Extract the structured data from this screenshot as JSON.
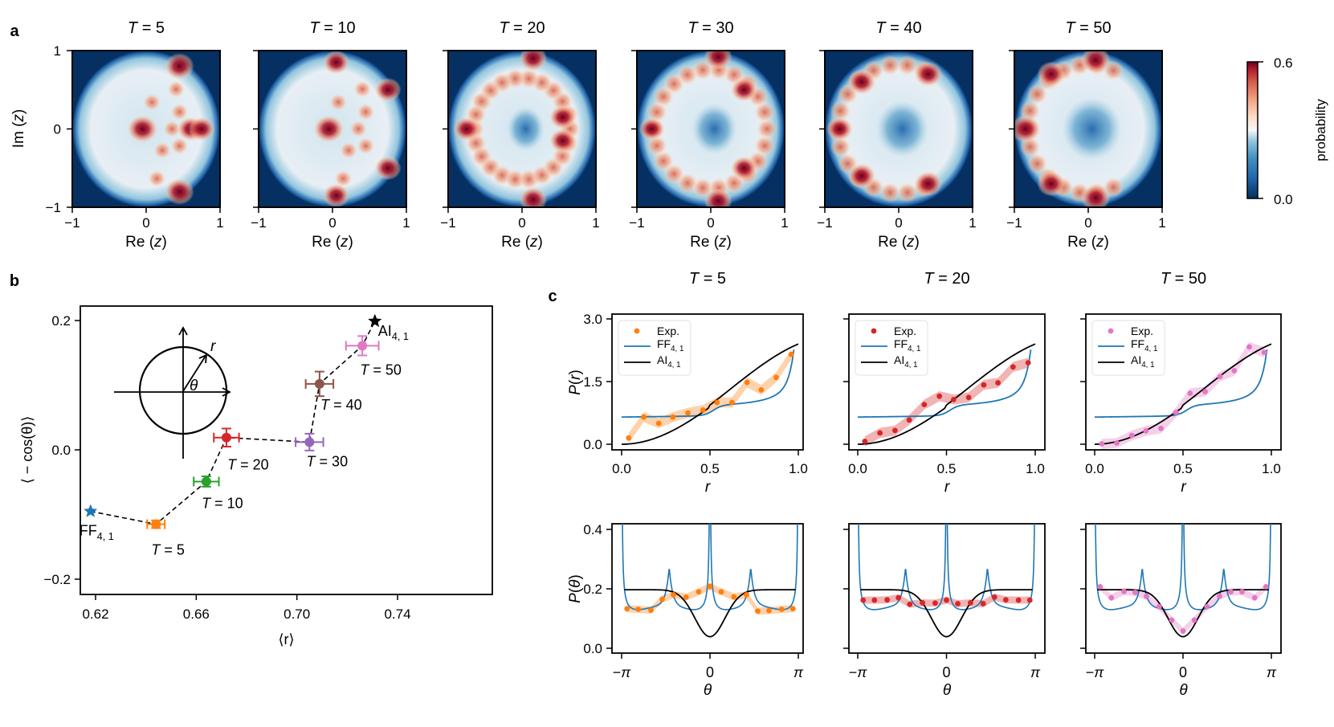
{
  "panels": {
    "a": {
      "letter": "a"
    },
    "b": {
      "letter": "b"
    },
    "c": {
      "letter": "c"
    }
  },
  "chart_data": [
    {
      "panel": "a",
      "type": "heatmap",
      "description": "Probability density of complex eigenvalue z in unit disk for increasing T",
      "titles": [
        "T = 5",
        "T = 10",
        "T = 20",
        "T = 30",
        "T = 40",
        "T = 50"
      ],
      "xlabel": "Re (z)",
      "ylabel": "Im (z)",
      "xticks": [
        "−1",
        "0",
        "1"
      ],
      "yticks": [
        "1",
        "0",
        "−1"
      ],
      "xlim": [
        -1,
        1
      ],
      "ylim": [
        -1,
        1
      ],
      "colorbar": {
        "label": "probability",
        "min": "0.0",
        "max": "0.6",
        "cmap": "RdBu_r"
      },
      "features": [
        {
          "T": 5,
          "hotspots": [
            [
              -0.05,
              0,
              0.6
            ],
            [
              0.45,
              0.8,
              0.55
            ],
            [
              0.45,
              -0.8,
              0.55
            ],
            [
              0.6,
              0,
              0.45
            ],
            [
              0.75,
              0,
              0.45
            ]
          ]
        },
        {
          "T": 10,
          "hotspots": [
            [
              -0.05,
              0,
              0.6
            ],
            [
              0.05,
              0.85,
              0.45
            ],
            [
              0.05,
              -0.85,
              0.45
            ],
            [
              0.75,
              0.5,
              0.45
            ],
            [
              0.75,
              -0.5,
              0.45
            ]
          ]
        },
        {
          "T": 20,
          "hotspots": [
            [
              0.15,
              0.9,
              0.5
            ],
            [
              0.15,
              -0.9,
              0.5
            ],
            [
              0.55,
              0.15,
              0.45
            ],
            [
              0.55,
              -0.15,
              0.45
            ],
            [
              -0.75,
              0,
              0.45
            ]
          ]
        },
        {
          "T": 30,
          "hotspots": [
            [
              0.1,
              0.92,
              0.5
            ],
            [
              0.1,
              -0.92,
              0.5
            ],
            [
              0.45,
              0.5,
              0.45
            ],
            [
              0.45,
              -0.5,
              0.45
            ],
            [
              -0.8,
              0,
              0.4
            ]
          ]
        },
        {
          "T": 40,
          "hotspots": [
            [
              -0.5,
              0.6,
              0.5
            ],
            [
              -0.5,
              -0.6,
              0.5
            ],
            [
              0.4,
              0.7,
              0.5
            ],
            [
              0.4,
              -0.7,
              0.5
            ],
            [
              -0.8,
              0,
              0.45
            ]
          ]
        },
        {
          "T": 50,
          "hotspots": [
            [
              -0.85,
              0,
              0.6
            ],
            [
              0.1,
              0.88,
              0.55
            ],
            [
              0.1,
              -0.88,
              0.55
            ],
            [
              -0.5,
              0.7,
              0.5
            ],
            [
              -0.5,
              -0.7,
              0.5
            ]
          ]
        }
      ]
    },
    {
      "panel": "b",
      "type": "scatter",
      "xlabel": "⟨r⟩",
      "ylabel": "⟨ − cos(θ)⟩",
      "xlim": [
        0.614,
        0.745
      ],
      "ylim": [
        -0.22,
        0.22
      ],
      "xticks": [
        "0.62",
        "0.66",
        "0.70",
        "0.74"
      ],
      "yticks": [
        "0.2",
        "0.0",
        "−0.2"
      ],
      "points": [
        {
          "label": "FF",
          "sub": "4, 1",
          "x": 0.618,
          "y": -0.095,
          "xerr": 0,
          "yerr": 0,
          "marker": "star",
          "color": "#1f77b4"
        },
        {
          "label": "T = 5",
          "x": 0.644,
          "y": -0.115,
          "xerr": 0.0035,
          "yerr": 0.006,
          "marker": "o",
          "color": "#ff7f0e"
        },
        {
          "label": "T = 10",
          "x": 0.664,
          "y": -0.049,
          "xerr": 0.005,
          "yerr": 0.008,
          "marker": "o",
          "color": "#2ca02c"
        },
        {
          "label": "T = 20",
          "x": 0.672,
          "y": 0.019,
          "xerr": 0.005,
          "yerr": 0.014,
          "marker": "o",
          "color": "#d62728"
        },
        {
          "label": "T = 30",
          "x": 0.705,
          "y": 0.012,
          "xerr": 0.0055,
          "yerr": 0.013,
          "marker": "o",
          "color": "#9467bd"
        },
        {
          "label": "T = 40",
          "x": 0.709,
          "y": 0.102,
          "xerr": 0.0055,
          "yerr": 0.019,
          "marker": "o",
          "color": "#8c564b"
        },
        {
          "label": "T = 50",
          "x": 0.726,
          "y": 0.161,
          "xerr": 0.0065,
          "yerr": 0.015,
          "marker": "o",
          "color": "#e377c2"
        },
        {
          "label": "AI",
          "sub": "4, 1",
          "x": 0.731,
          "y": 0.199,
          "xerr": 0,
          "yerr": 0,
          "marker": "star",
          "color": "#000000"
        }
      ],
      "inset": {
        "labels": [
          "r",
          "θ"
        ]
      }
    },
    {
      "panel": "c-top",
      "type": "line",
      "ylabel": "P(r)",
      "xlabel": "r",
      "xlim": [
        -0.05,
        1.05
      ],
      "ylim": [
        -0.1,
        3.1
      ],
      "xticks": [
        "0.0",
        "0.5",
        "1.0"
      ],
      "yticks": [
        "0.0",
        "1.5",
        "3.0"
      ],
      "legend": [
        "Exp.",
        "FF",
        "AI"
      ],
      "legend_sub": "4, 1",
      "titles": [
        "T = 5",
        "T = 20",
        "T = 50"
      ],
      "x": [
        0.04,
        0.125,
        0.21,
        0.29,
        0.375,
        0.46,
        0.54,
        0.625,
        0.71,
        0.79,
        0.875,
        0.96
      ],
      "series": [
        {
          "name": "Exp. T=5",
          "color": "#ff7f0e",
          "values": [
            0.15,
            0.65,
            0.5,
            0.65,
            0.75,
            0.82,
            1.0,
            1.0,
            1.48,
            1.3,
            1.6,
            2.15
          ]
        },
        {
          "name": "Exp. T=20",
          "color": "#d62728",
          "values": [
            0.07,
            0.27,
            0.33,
            0.58,
            0.95,
            1.15,
            1.07,
            1.12,
            1.42,
            1.47,
            1.85,
            1.95
          ]
        },
        {
          "name": "Exp. T=50",
          "color": "#e377c2",
          "values": [
            0.01,
            0.03,
            0.21,
            0.32,
            0.38,
            0.76,
            1.22,
            1.26,
            1.62,
            1.76,
            2.33,
            2.2
          ]
        }
      ],
      "theory": {
        "FF": {
          "color": "#1f77b4",
          "x": [
            0,
            0.2,
            0.4,
            0.5,
            0.55,
            0.7,
            0.8,
            0.85,
            0.88,
            0.91,
            0.93,
            0.95,
            0.97
          ],
          "values": [
            0.65,
            0.67,
            0.7,
            0.78,
            0.88,
            0.92,
            0.98,
            1.1,
            1.35,
            1.9,
            2.4,
            3.0,
            3.6
          ]
        },
        "AI": {
          "color": "#000000",
          "x": [
            0,
            0.1,
            0.2,
            0.3,
            0.4,
            0.5,
            0.6,
            0.7,
            0.8,
            0.9,
            1.0
          ],
          "values": [
            0.0,
            0.03,
            0.15,
            0.35,
            0.62,
            0.93,
            1.25,
            1.55,
            1.85,
            2.1,
            2.4
          ]
        }
      }
    },
    {
      "panel": "c-bottom",
      "type": "line",
      "ylabel": "P(θ)",
      "xlabel": "θ",
      "xlim": [
        -3.5,
        3.5
      ],
      "ylim": [
        -0.01,
        0.41
      ],
      "xticks": [
        "−π",
        "0",
        "π"
      ],
      "yticks": [
        "0.0",
        "0.2",
        "0.4"
      ],
      "x": [
        -2.95,
        -2.55,
        -2.15,
        -1.75,
        -1.35,
        -0.95,
        -0.55,
        -0.15,
        0.0,
        0.15,
        0.55,
        0.95,
        1.35,
        1.75,
        2.15,
        2.55,
        2.95
      ],
      "series": [
        {
          "name": "Exp. T=5",
          "color": "#ff7f0e",
          "x": [
            -2.95,
            -2.55,
            -2.1,
            -1.7,
            -1.3,
            -0.85,
            -0.4,
            0.0,
            0.4,
            0.85,
            1.3,
            1.7,
            2.1,
            2.55,
            2.95
          ],
          "values": [
            0.133,
            0.131,
            0.128,
            0.165,
            0.18,
            0.172,
            0.19,
            0.208,
            0.19,
            0.173,
            0.18,
            0.125,
            0.127,
            0.131,
            0.133
          ]
        },
        {
          "name": "Exp. T=20",
          "color": "#d62728",
          "x": [
            -2.95,
            -2.55,
            -2.1,
            -1.7,
            -1.3,
            -0.85,
            -0.4,
            0.0,
            0.4,
            0.85,
            1.3,
            1.7,
            2.1,
            2.55,
            2.95
          ],
          "values": [
            0.162,
            0.162,
            0.163,
            0.17,
            0.148,
            0.153,
            0.152,
            0.162,
            0.15,
            0.153,
            0.15,
            0.172,
            0.163,
            0.162,
            0.162
          ]
        },
        {
          "name": "Exp. T=50",
          "color": "#e377c2",
          "x": [
            -2.95,
            -2.55,
            -2.1,
            -1.7,
            -1.3,
            -0.85,
            -0.4,
            0.0,
            0.4,
            0.85,
            1.3,
            1.7,
            2.1,
            2.55,
            2.95
          ],
          "values": [
            0.207,
            0.17,
            0.191,
            0.188,
            0.175,
            0.14,
            0.095,
            0.058,
            0.095,
            0.14,
            0.175,
            0.19,
            0.19,
            0.17,
            0.207
          ]
        }
      ],
      "theory": {
        "FF": {
          "color": "#1f77b4",
          "note": "sharp peaks at ±π, 0 (off-scale), small peaks ≈0.25 at ±1.45, floor ≈0.10-0.13"
        },
        "AI": {
          "color": "#000000",
          "note": "flat ≈0.197 for |θ|>1.5, dips to ≈0.04 at θ=0"
        }
      }
    }
  ]
}
